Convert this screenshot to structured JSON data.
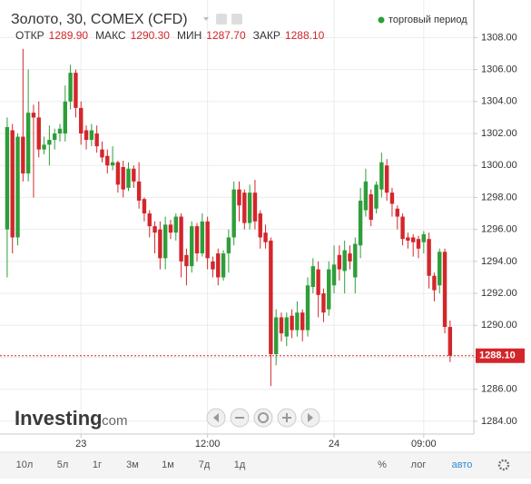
{
  "header": {
    "title": "Золото, 30, COMEX (CFD)",
    "session": "торговый период",
    "ohlc": [
      {
        "label": "ОТКР",
        "value": "1289.90"
      },
      {
        "label": "МАКС",
        "value": "1290.30"
      },
      {
        "label": "МИН",
        "value": "1287.70"
      },
      {
        "label": "ЗАКР",
        "value": "1288.10"
      }
    ]
  },
  "logo": {
    "name": "Investing",
    "suffix": ".com"
  },
  "toolbar": {
    "periods": [
      "10л",
      "5л",
      "1г",
      "3м",
      "1м",
      "7д",
      "1д"
    ],
    "options": [
      "%",
      "лог",
      "авто"
    ]
  },
  "chart_data": {
    "type": "candlestick",
    "up_color": "#2e9e3a",
    "down_color": "#d3262b",
    "grid": true,
    "open": [
      1296,
      1302.2,
      1295.5,
      1301.8,
      1299.5,
      1303.3,
      1303,
      1301,
      1301.3,
      1301.6,
      1302,
      1302,
      1304,
      1305.8,
      1303.6,
      1302.2,
      1301.6,
      1302,
      1301,
      1300.6,
      1300,
      1300.2,
      1299.9,
      1298.6,
      1299.8,
      1299,
      1297.9,
      1297,
      1296.2,
      1296,
      1294.2,
      1296.3,
      1295.8,
      1296.8,
      1294.4,
      1293.7,
      1296.2,
      1294.5,
      1296.5,
      1294,
      1294.5,
      1293,
      1294.5,
      1295.5,
      1298.5,
      1298.3,
      1296.4,
      1298.3,
      1297,
      1295.8,
      1295.3,
      1288.2,
      1290.5,
      1289.3,
      1290.6,
      1289.7,
      1290.8,
      1289.7,
      1292.4,
      1293.5,
      1292,
      1291,
      1292.5,
      1294.4,
      1293.4,
      1294.5,
      1293,
      1295,
      1297.2,
      1298.2,
      1297.3,
      1298.5,
      1300,
      1298.3,
      1297.3,
      1296.8,
      1295.5,
      1295.5,
      1295.4,
      1295.2,
      1295.4,
      1293.1,
      1292.5,
      1294.6,
      1289.9
    ],
    "high": [
      1303,
      1302.6,
      1302,
      1307.3,
      1306,
      1303.8,
      1304,
      1301.8,
      1302.5,
      1302.3,
      1302.6,
      1305,
      1306.3,
      1306,
      1304,
      1302.5,
      1302.6,
      1302.5,
      1301.5,
      1301,
      1301.2,
      1300.3,
      1300.3,
      1300.2,
      1300,
      1300.2,
      1298,
      1297.2,
      1296.5,
      1296.5,
      1296.8,
      1296.6,
      1297,
      1297,
      1294.8,
      1296.5,
      1296.4,
      1297,
      1296.8,
      1294.3,
      1294.8,
      1294.7,
      1296,
      1299,
      1299,
      1298.5,
      1298.8,
      1299.1,
      1297.2,
      1296.3,
      1295.5,
      1291,
      1290.8,
      1290.8,
      1291,
      1291.5,
      1291,
      1293,
      1294.2,
      1294,
      1292.3,
      1294,
      1295,
      1295,
      1295.3,
      1295,
      1295.5,
      1298.6,
      1299.8,
      1298.5,
      1299,
      1300.8,
      1300.4,
      1298.6,
      1297.5,
      1297,
      1295.8,
      1295.7,
      1295.6,
      1295.9,
      1295.8,
      1293.3,
      1294.8,
      1294.8,
      1290.3
    ],
    "low": [
      1293,
      1294.5,
      1295,
      1299,
      1299,
      1298,
      1300.5,
      1300.7,
      1300,
      1301,
      1301.5,
      1301.5,
      1303.5,
      1303,
      1301.3,
      1301,
      1301.2,
      1300.8,
      1300.2,
      1299.5,
      1299.7,
      1298.3,
      1298,
      1298.4,
      1298.6,
      1297.3,
      1296.5,
      1295.5,
      1294.5,
      1293.5,
      1293.5,
      1295.4,
      1295.3,
      1293,
      1292.5,
      1293.3,
      1294,
      1294.3,
      1293.5,
      1293,
      1292.5,
      1292.8,
      1293.3,
      1295,
      1296.5,
      1296,
      1296,
      1296,
      1294.8,
      1294.8,
      1286.2,
      1287.5,
      1289,
      1288.7,
      1289.2,
      1289.3,
      1289,
      1289.3,
      1292,
      1290.5,
      1290.2,
      1290.6,
      1292,
      1292.8,
      1292,
      1293.5,
      1292,
      1294.2,
      1296.8,
      1296.2,
      1297,
      1298,
      1297.8,
      1296.8,
      1296,
      1295,
      1294.8,
      1294.3,
      1294.2,
      1294.5,
      1292.3,
      1291.5,
      1292,
      1289.5,
      1287.7
    ],
    "close": [
      1302.4,
      1295.5,
      1301.8,
      1299.5,
      1303.3,
      1303,
      1301,
      1301.3,
      1301.6,
      1302,
      1302.3,
      1304,
      1305.8,
      1303.6,
      1302,
      1301.6,
      1302.2,
      1301.2,
      1300.5,
      1300,
      1300.2,
      1298.8,
      1298.5,
      1299.8,
      1299,
      1297.8,
      1297,
      1296.2,
      1295.8,
      1294.2,
      1296.3,
      1295.8,
      1296.8,
      1294,
      1293.7,
      1296.2,
      1294.5,
      1296.5,
      1294.2,
      1293.5,
      1293,
      1294.5,
      1295.5,
      1298.5,
      1297.5,
      1296.4,
      1298.3,
      1296.5,
      1295.5,
      1295.2,
      1288.2,
      1290.5,
      1289.5,
      1290.5,
      1289.7,
      1290.8,
      1289.7,
      1292.5,
      1293.7,
      1291.9,
      1290.8,
      1293.5,
      1293.8,
      1293.5,
      1294.7,
      1294,
      1295.1,
      1297.8,
      1299,
      1296.6,
      1298.8,
      1300.2,
      1298.3,
      1297.6,
      1296.8,
      1295.4,
      1295.3,
      1295.2,
      1294.8,
      1295.7,
      1293.1,
      1292.2,
      1294.6,
      1289.9,
      1288.1
    ],
    "xlim": [
      -0.5,
      88.5
    ],
    "xticks": [
      {
        "value": 14,
        "label": "23"
      },
      {
        "value": 38,
        "label": "12:00"
      },
      {
        "value": 62,
        "label": "24"
      },
      {
        "value": 79,
        "label": "09:00"
      }
    ],
    "ylim": [
      1283.2,
      1310.35
    ],
    "yticks": [
      {
        "value": 1284,
        "label": "1284.00"
      },
      {
        "value": 1286,
        "label": "1286.00"
      },
      {
        "value": 1288,
        "label": "1288.00"
      },
      {
        "value": 1290,
        "label": "1290.00"
      },
      {
        "value": 1292,
        "label": "1292.00"
      },
      {
        "value": 1294,
        "label": "1294.00"
      },
      {
        "value": 1296,
        "label": "1296.00"
      },
      {
        "value": 1298,
        "label": "1298.00"
      },
      {
        "value": 1300,
        "label": "1300.00"
      },
      {
        "value": 1302,
        "label": "1302.00"
      },
      {
        "value": 1304,
        "label": "1304.00"
      },
      {
        "value": 1306,
        "label": "1306.00"
      },
      {
        "value": 1308,
        "label": "1308.00"
      }
    ],
    "last_price": {
      "value": 1288.1,
      "label": "1288.10"
    }
  }
}
